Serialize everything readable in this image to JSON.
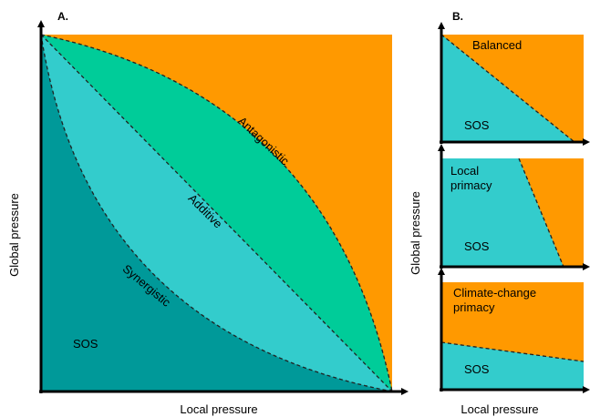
{
  "colors": {
    "orange": "#FF9900",
    "green": "#00CC99",
    "cyan": "#33CCCC",
    "teal": "#009999",
    "axis": "#000000",
    "divider": "#222222"
  },
  "panel_a": {
    "label": "A.",
    "x_axis_label": "Local pressure",
    "y_axis_label": "Global pressure",
    "curve_labels": {
      "antagonistic": "Antagonistic",
      "additive": "Additive",
      "synergistic": "Synergistic"
    },
    "region_label": "SOS"
  },
  "panel_b": {
    "label": "B.",
    "x_axis_label": "Local pressure",
    "y_axis_label": "Global pressure",
    "subpanels": [
      {
        "top_label": "Balanced",
        "bottom_label": "SOS"
      },
      {
        "top_label_lines": [
          "Local",
          "primacy"
        ],
        "bottom_label": "SOS"
      },
      {
        "top_label_lines": [
          "Climate-change",
          "primacy"
        ],
        "bottom_label": "SOS"
      }
    ]
  }
}
